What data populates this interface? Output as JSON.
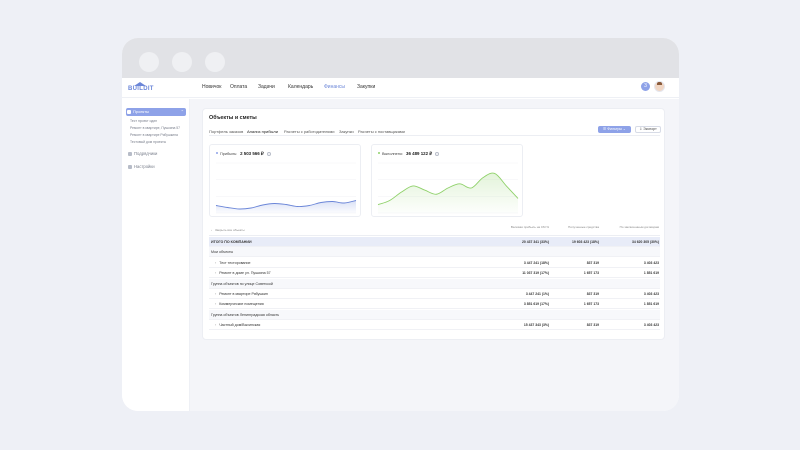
{
  "nav": {
    "logo": "BUILDIT",
    "items": [
      {
        "label": "Новичок",
        "active": false
      },
      {
        "label": "Оплата",
        "active": false
      },
      {
        "label": "Задачи",
        "active": false
      },
      {
        "label": "Календарь",
        "active": false
      },
      {
        "label": "Финансы",
        "active": true
      },
      {
        "label": "Закупки",
        "active": false
      }
    ],
    "notif_count": "3"
  },
  "sidebar": {
    "active": {
      "label": "Проекты"
    },
    "subitems": [
      "Тест проект один",
      "Ремонт в квартире, Пушкина 57",
      "Ремонт в квартире Рябушкина",
      "Тестовый дом проекты"
    ],
    "items": [
      {
        "label": "Подрядчики"
      },
      {
        "label": "Настройки"
      }
    ]
  },
  "main": {
    "title": "Объекты и сметы",
    "tabs": [
      {
        "label": "Портфель заказов",
        "active": false
      },
      {
        "label": "Анализ прибыли",
        "active": true
      },
      {
        "label": "Расчеты с работодателями",
        "active": false
      },
      {
        "label": "Закупки",
        "active": false
      },
      {
        "label": "Расчеты с поставщиками",
        "active": false
      }
    ],
    "filter_label": "Фильтры",
    "export_label": "Экспорт",
    "charts": [
      {
        "label": "Прибыль:",
        "value": "2 503 566 ₽",
        "color": "#6b86d8"
      },
      {
        "label": "Выполнено:",
        "value": "36 489 122 ₽",
        "color": "#8fd16a"
      }
    ],
    "table": {
      "first_header": "Закрыть все объекты",
      "headers": [
        "Валовая прибыль на СМ %",
        "Полученные средства",
        "По заключенным договорам"
      ],
      "rows": [
        {
          "kind": "total",
          "name": "ИТОГО ПО КОМПАНИИ",
          "v": [
            "20 437 341 (33%)",
            "19 603 423 (18%)",
            "34 620 305 (30%)"
          ]
        },
        {
          "kind": "group",
          "name": "Мои объекты",
          "v": [
            "",
            "",
            ""
          ]
        },
        {
          "kind": "item",
          "name": "Тест тестирование",
          "v": [
            "3 447 241 (18%)",
            "837 319",
            "3 403 423"
          ]
        },
        {
          "kind": "item",
          "name": "Ремонт в доме ул. Пушкина 57",
          "v": [
            "11 037 319 (17%)",
            "1 657 173",
            "1 851 619"
          ]
        },
        {
          "kind": "group",
          "name": "Группа объектов по улице Советской",
          "v": [
            "",
            "",
            ""
          ]
        },
        {
          "kind": "item",
          "name": "Ремонт в квартире Рябушкин",
          "v": [
            "3 447 241 (1%)",
            "837 319",
            "3 403 423"
          ]
        },
        {
          "kind": "item",
          "name": "Коммерческие помещения",
          "v": [
            "3 851 619 (17%)",
            "1 657 173",
            "1 851 619"
          ]
        },
        {
          "kind": "group",
          "name": "Группа объектов Ленинградская область",
          "v": [
            "",
            "",
            ""
          ]
        },
        {
          "kind": "item",
          "name": "Частный дом/Выхинская",
          "v": [
            "15 437 343 (3%)",
            "837 319",
            "3 403 423"
          ]
        }
      ]
    }
  },
  "chart_data": [
    {
      "type": "area",
      "title": "Прибыль:",
      "x": [
        0,
        1,
        2,
        3,
        4,
        5,
        6,
        7,
        8,
        9,
        10,
        11,
        12
      ],
      "series": [
        {
          "name": "Прибыль",
          "values": [
            3,
            2.2,
            1.6,
            2.0,
            3.2,
            3.8,
            3.4,
            2.6,
            3.0,
            4.2,
            4.6,
            4.0,
            5.0
          ]
        }
      ],
      "ylim": [
        0,
        20
      ]
    },
    {
      "type": "area",
      "title": "Выполнено:",
      "x": [
        0,
        1,
        2,
        3,
        4,
        5,
        6,
        7,
        8,
        9,
        10,
        11,
        12
      ],
      "series": [
        {
          "name": "Выполнено",
          "values": [
            4,
            6,
            10,
            13,
            11,
            9,
            12,
            14,
            12,
            17,
            19,
            13,
            7
          ]
        }
      ],
      "ylim": [
        0,
        24
      ]
    }
  ]
}
